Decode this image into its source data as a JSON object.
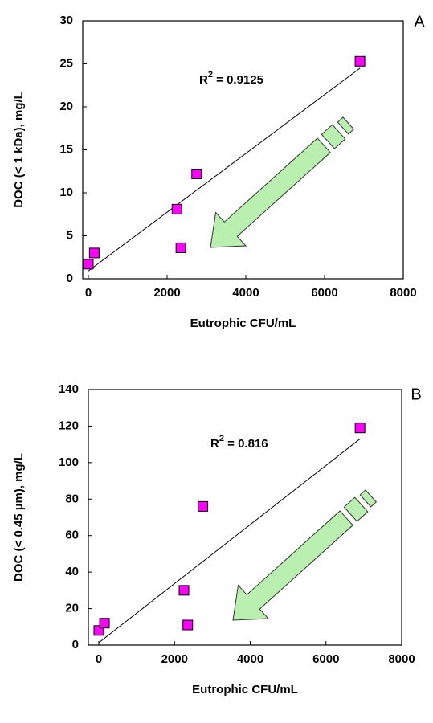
{
  "chart_data": [
    {
      "type": "scatter",
      "panel": "A",
      "x_label": "Eutrophic CFU/mL",
      "y_label": "DOC (< 1 kDa), mg/L",
      "annotation": [
        "R",
        "2",
        " = 0.9125"
      ],
      "x": [
        0,
        150,
        2250,
        2350,
        2750,
        6900
      ],
      "values": [
        1.7,
        3.0,
        8.1,
        3.6,
        12.2,
        25.3
      ],
      "color": "#ff00ff",
      "trend": {
        "x": [
          0,
          6900
        ],
        "y": [
          0.9,
          24.5
        ]
      },
      "xlim": [
        0,
        8000
      ],
      "xticks": [
        0,
        2000,
        4000,
        6000,
        8000
      ],
      "ylim": [
        0,
        30
      ],
      "yticks": [
        0,
        5,
        10,
        15,
        20,
        25,
        30
      ]
    },
    {
      "type": "scatter",
      "panel": "B",
      "x_label": "Eutrophic CFU/mL",
      "y_label": "DOC (< 0.45 µm), mg/L",
      "annotation": [
        "R",
        "2",
        " = 0.816"
      ],
      "x": [
        0,
        150,
        2250,
        2350,
        2750,
        6900
      ],
      "values": [
        8,
        12,
        30,
        11,
        76,
        119
      ],
      "color": "#ff00ff",
      "trend": {
        "x": [
          0,
          6900
        ],
        "y": [
          1.3,
          113
        ]
      },
      "xlim": [
        0,
        8000
      ],
      "xticks": [
        0,
        2000,
        4000,
        6000,
        8000
      ],
      "ylim": [
        0,
        140
      ],
      "yticks": [
        0,
        20,
        40,
        60,
        80,
        100,
        120,
        140
      ]
    }
  ]
}
